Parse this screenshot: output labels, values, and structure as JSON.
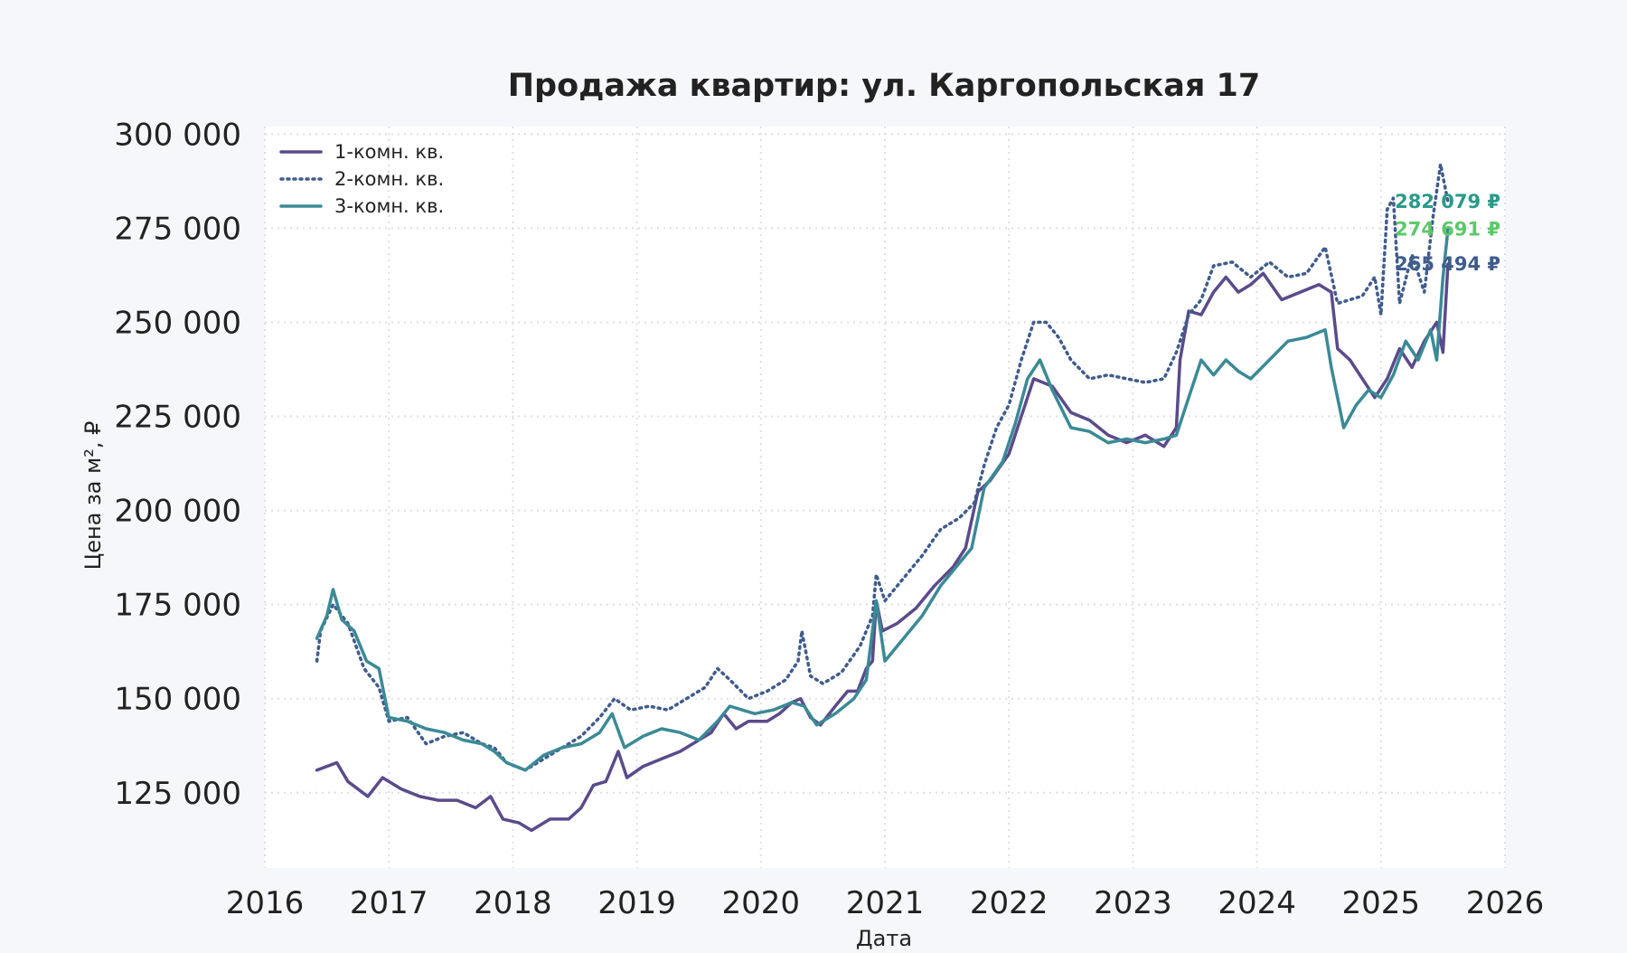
{
  "chart_data": {
    "type": "line",
    "title": "Продажа квартир: ул. Каргопольская 17",
    "xlabel": "Дата",
    "ylabel": "Цена за м², ₽",
    "xlim": [
      2016.0,
      2026.0
    ],
    "ylim": [
      105000,
      302000
    ],
    "x_ticks": [
      2016,
      2017,
      2018,
      2019,
      2020,
      2021,
      2022,
      2023,
      2024,
      2025,
      2026
    ],
    "x_tick_labels": [
      "2016",
      "2017",
      "2018",
      "2019",
      "2020",
      "2021",
      "2022",
      "2023",
      "2024",
      "2025",
      "2026"
    ],
    "y_ticks": [
      125000,
      150000,
      175000,
      200000,
      225000,
      250000,
      275000,
      300000
    ],
    "y_tick_labels": [
      "125 000",
      "150 000",
      "175 000",
      "200 000",
      "225 000",
      "250 000",
      "275 000",
      "300 000"
    ],
    "grid": true,
    "legend_position": "top-left",
    "series": [
      {
        "name": "1-комн. кв.",
        "color": "#5b4a8b",
        "style": "solid",
        "points": [
          [
            2016.42,
            131000
          ],
          [
            2016.5,
            132000
          ],
          [
            2016.58,
            133000
          ],
          [
            2016.67,
            128000
          ],
          [
            2016.83,
            124000
          ],
          [
            2016.95,
            129000
          ],
          [
            2017.1,
            126000
          ],
          [
            2017.25,
            124000
          ],
          [
            2017.4,
            123000
          ],
          [
            2017.55,
            123000
          ],
          [
            2017.7,
            121000
          ],
          [
            2017.82,
            124000
          ],
          [
            2017.92,
            118000
          ],
          [
            2018.05,
            117000
          ],
          [
            2018.15,
            115000
          ],
          [
            2018.3,
            118000
          ],
          [
            2018.45,
            118000
          ],
          [
            2018.55,
            121000
          ],
          [
            2018.65,
            127000
          ],
          [
            2018.75,
            128000
          ],
          [
            2018.85,
            136000
          ],
          [
            2018.92,
            129000
          ],
          [
            2019.05,
            132000
          ],
          [
            2019.2,
            134000
          ],
          [
            2019.35,
            136000
          ],
          [
            2019.5,
            139000
          ],
          [
            2019.6,
            141000
          ],
          [
            2019.7,
            146000
          ],
          [
            2019.8,
            142000
          ],
          [
            2019.9,
            144000
          ],
          [
            2020.05,
            144000
          ],
          [
            2020.15,
            146000
          ],
          [
            2020.25,
            149000
          ],
          [
            2020.32,
            150000
          ],
          [
            2020.4,
            145000
          ],
          [
            2020.48,
            143000
          ],
          [
            2020.6,
            148000
          ],
          [
            2020.7,
            152000
          ],
          [
            2020.78,
            152000
          ],
          [
            2020.85,
            158000
          ],
          [
            2020.9,
            160000
          ],
          [
            2020.93,
            176000
          ],
          [
            2020.98,
            168000
          ],
          [
            2021.1,
            170000
          ],
          [
            2021.25,
            174000
          ],
          [
            2021.4,
            180000
          ],
          [
            2021.55,
            185000
          ],
          [
            2021.65,
            190000
          ],
          [
            2021.75,
            205000
          ],
          [
            2021.85,
            208000
          ],
          [
            2022.0,
            215000
          ],
          [
            2022.1,
            225000
          ],
          [
            2022.2,
            235000
          ],
          [
            2022.35,
            233000
          ],
          [
            2022.5,
            226000
          ],
          [
            2022.65,
            224000
          ],
          [
            2022.8,
            220000
          ],
          [
            2022.95,
            218000
          ],
          [
            2023.1,
            220000
          ],
          [
            2023.25,
            217000
          ],
          [
            2023.35,
            222000
          ],
          [
            2023.38,
            240000
          ],
          [
            2023.45,
            253000
          ],
          [
            2023.55,
            252000
          ],
          [
            2023.65,
            258000
          ],
          [
            2023.75,
            262000
          ],
          [
            2023.85,
            258000
          ],
          [
            2023.95,
            260000
          ],
          [
            2024.05,
            263000
          ],
          [
            2024.2,
            256000
          ],
          [
            2024.35,
            258000
          ],
          [
            2024.5,
            260000
          ],
          [
            2024.6,
            258000
          ],
          [
            2024.65,
            243000
          ],
          [
            2024.75,
            240000
          ],
          [
            2024.85,
            235000
          ],
          [
            2024.95,
            230000
          ],
          [
            2025.05,
            235000
          ],
          [
            2025.15,
            243000
          ],
          [
            2025.25,
            238000
          ],
          [
            2025.35,
            245000
          ],
          [
            2025.45,
            250000
          ],
          [
            2025.5,
            242000
          ],
          [
            2025.54,
            265494
          ]
        ]
      },
      {
        "name": "2-комн. кв.",
        "color": "#3f5c8c",
        "style": "dotted",
        "points": [
          [
            2016.42,
            160000
          ],
          [
            2016.45,
            168000
          ],
          [
            2016.55,
            175000
          ],
          [
            2016.67,
            170000
          ],
          [
            2016.8,
            158000
          ],
          [
            2016.92,
            153000
          ],
          [
            2017.0,
            144000
          ],
          [
            2017.15,
            145000
          ],
          [
            2017.3,
            138000
          ],
          [
            2017.45,
            140000
          ],
          [
            2017.6,
            141000
          ],
          [
            2017.75,
            138000
          ],
          [
            2017.85,
            137000
          ],
          [
            2017.95,
            133000
          ],
          [
            2018.1,
            131000
          ],
          [
            2018.25,
            134000
          ],
          [
            2018.4,
            137000
          ],
          [
            2018.55,
            140000
          ],
          [
            2018.7,
            145000
          ],
          [
            2018.82,
            150000
          ],
          [
            2018.95,
            147000
          ],
          [
            2019.1,
            148000
          ],
          [
            2019.25,
            147000
          ],
          [
            2019.4,
            150000
          ],
          [
            2019.55,
            153000
          ],
          [
            2019.65,
            158000
          ],
          [
            2019.75,
            155000
          ],
          [
            2019.9,
            150000
          ],
          [
            2020.05,
            152000
          ],
          [
            2020.2,
            155000
          ],
          [
            2020.3,
            160000
          ],
          [
            2020.33,
            168000
          ],
          [
            2020.4,
            156000
          ],
          [
            2020.5,
            154000
          ],
          [
            2020.65,
            157000
          ],
          [
            2020.8,
            164000
          ],
          [
            2020.9,
            172000
          ],
          [
            2020.93,
            183000
          ],
          [
            2021.0,
            176000
          ],
          [
            2021.15,
            182000
          ],
          [
            2021.3,
            188000
          ],
          [
            2021.45,
            195000
          ],
          [
            2021.6,
            198000
          ],
          [
            2021.72,
            202000
          ],
          [
            2021.8,
            212000
          ],
          [
            2021.9,
            222000
          ],
          [
            2022.0,
            228000
          ],
          [
            2022.1,
            240000
          ],
          [
            2022.2,
            250000
          ],
          [
            2022.3,
            250000
          ],
          [
            2022.4,
            246000
          ],
          [
            2022.5,
            240000
          ],
          [
            2022.65,
            235000
          ],
          [
            2022.8,
            236000
          ],
          [
            2022.95,
            235000
          ],
          [
            2023.1,
            234000
          ],
          [
            2023.25,
            235000
          ],
          [
            2023.35,
            242000
          ],
          [
            2023.45,
            252000
          ],
          [
            2023.55,
            256000
          ],
          [
            2023.65,
            265000
          ],
          [
            2023.8,
            266000
          ],
          [
            2023.95,
            262000
          ],
          [
            2024.1,
            266000
          ],
          [
            2024.25,
            262000
          ],
          [
            2024.4,
            263000
          ],
          [
            2024.55,
            270000
          ],
          [
            2024.65,
            255000
          ],
          [
            2024.75,
            256000
          ],
          [
            2024.85,
            257000
          ],
          [
            2024.95,
            262000
          ],
          [
            2025.0,
            252000
          ],
          [
            2025.05,
            280000
          ],
          [
            2025.1,
            283000
          ],
          [
            2025.15,
            255000
          ],
          [
            2025.25,
            268000
          ],
          [
            2025.35,
            258000
          ],
          [
            2025.42,
            278000
          ],
          [
            2025.48,
            292000
          ],
          [
            2025.54,
            282079
          ]
        ]
      },
      {
        "name": "3-комн. кв.",
        "color": "#3a8a96",
        "style": "solid",
        "points": [
          [
            2016.42,
            166000
          ],
          [
            2016.5,
            172000
          ],
          [
            2016.55,
            179000
          ],
          [
            2016.62,
            171000
          ],
          [
            2016.72,
            168000
          ],
          [
            2016.82,
            160000
          ],
          [
            2016.92,
            158000
          ],
          [
            2017.0,
            145000
          ],
          [
            2017.15,
            144000
          ],
          [
            2017.3,
            142000
          ],
          [
            2017.45,
            141000
          ],
          [
            2017.6,
            139000
          ],
          [
            2017.75,
            138000
          ],
          [
            2017.85,
            136000
          ],
          [
            2017.95,
            133000
          ],
          [
            2018.1,
            131000
          ],
          [
            2018.25,
            135000
          ],
          [
            2018.4,
            137000
          ],
          [
            2018.55,
            138000
          ],
          [
            2018.7,
            141000
          ],
          [
            2018.8,
            146000
          ],
          [
            2018.9,
            137000
          ],
          [
            2019.05,
            140000
          ],
          [
            2019.2,
            142000
          ],
          [
            2019.35,
            141000
          ],
          [
            2019.5,
            139000
          ],
          [
            2019.65,
            144000
          ],
          [
            2019.75,
            148000
          ],
          [
            2019.85,
            147000
          ],
          [
            2019.95,
            146000
          ],
          [
            2020.1,
            147000
          ],
          [
            2020.25,
            149000
          ],
          [
            2020.35,
            148000
          ],
          [
            2020.45,
            143000
          ],
          [
            2020.6,
            146000
          ],
          [
            2020.75,
            150000
          ],
          [
            2020.85,
            155000
          ],
          [
            2020.93,
            176000
          ],
          [
            2021.0,
            160000
          ],
          [
            2021.15,
            166000
          ],
          [
            2021.3,
            172000
          ],
          [
            2021.45,
            180000
          ],
          [
            2021.6,
            186000
          ],
          [
            2021.7,
            190000
          ],
          [
            2021.8,
            206000
          ],
          [
            2021.95,
            213000
          ],
          [
            2022.05,
            223000
          ],
          [
            2022.15,
            235000
          ],
          [
            2022.25,
            240000
          ],
          [
            2022.35,
            232000
          ],
          [
            2022.5,
            222000
          ],
          [
            2022.65,
            221000
          ],
          [
            2022.8,
            218000
          ],
          [
            2022.95,
            219000
          ],
          [
            2023.1,
            218000
          ],
          [
            2023.25,
            219000
          ],
          [
            2023.35,
            220000
          ],
          [
            2023.45,
            230000
          ],
          [
            2023.55,
            240000
          ],
          [
            2023.65,
            236000
          ],
          [
            2023.75,
            240000
          ],
          [
            2023.85,
            237000
          ],
          [
            2023.95,
            235000
          ],
          [
            2024.1,
            240000
          ],
          [
            2024.25,
            245000
          ],
          [
            2024.4,
            246000
          ],
          [
            2024.55,
            248000
          ],
          [
            2024.6,
            238000
          ],
          [
            2024.7,
            222000
          ],
          [
            2024.8,
            228000
          ],
          [
            2024.9,
            232000
          ],
          [
            2025.0,
            230000
          ],
          [
            2025.1,
            236000
          ],
          [
            2025.2,
            245000
          ],
          [
            2025.3,
            240000
          ],
          [
            2025.4,
            248000
          ],
          [
            2025.45,
            240000
          ],
          [
            2025.5,
            262000
          ],
          [
            2025.54,
            274691
          ]
        ]
      }
    ],
    "annotations": [
      {
        "text": "282 079 ₽",
        "series": "2-комн. кв.",
        "color": "#2a9a8a"
      },
      {
        "text": "274 691 ₽",
        "series": "3-комн. кв.",
        "color": "#5cc86a"
      },
      {
        "text": "265 494 ₽",
        "series": "1-комн. кв.",
        "color": "#3f5c8c"
      }
    ]
  }
}
